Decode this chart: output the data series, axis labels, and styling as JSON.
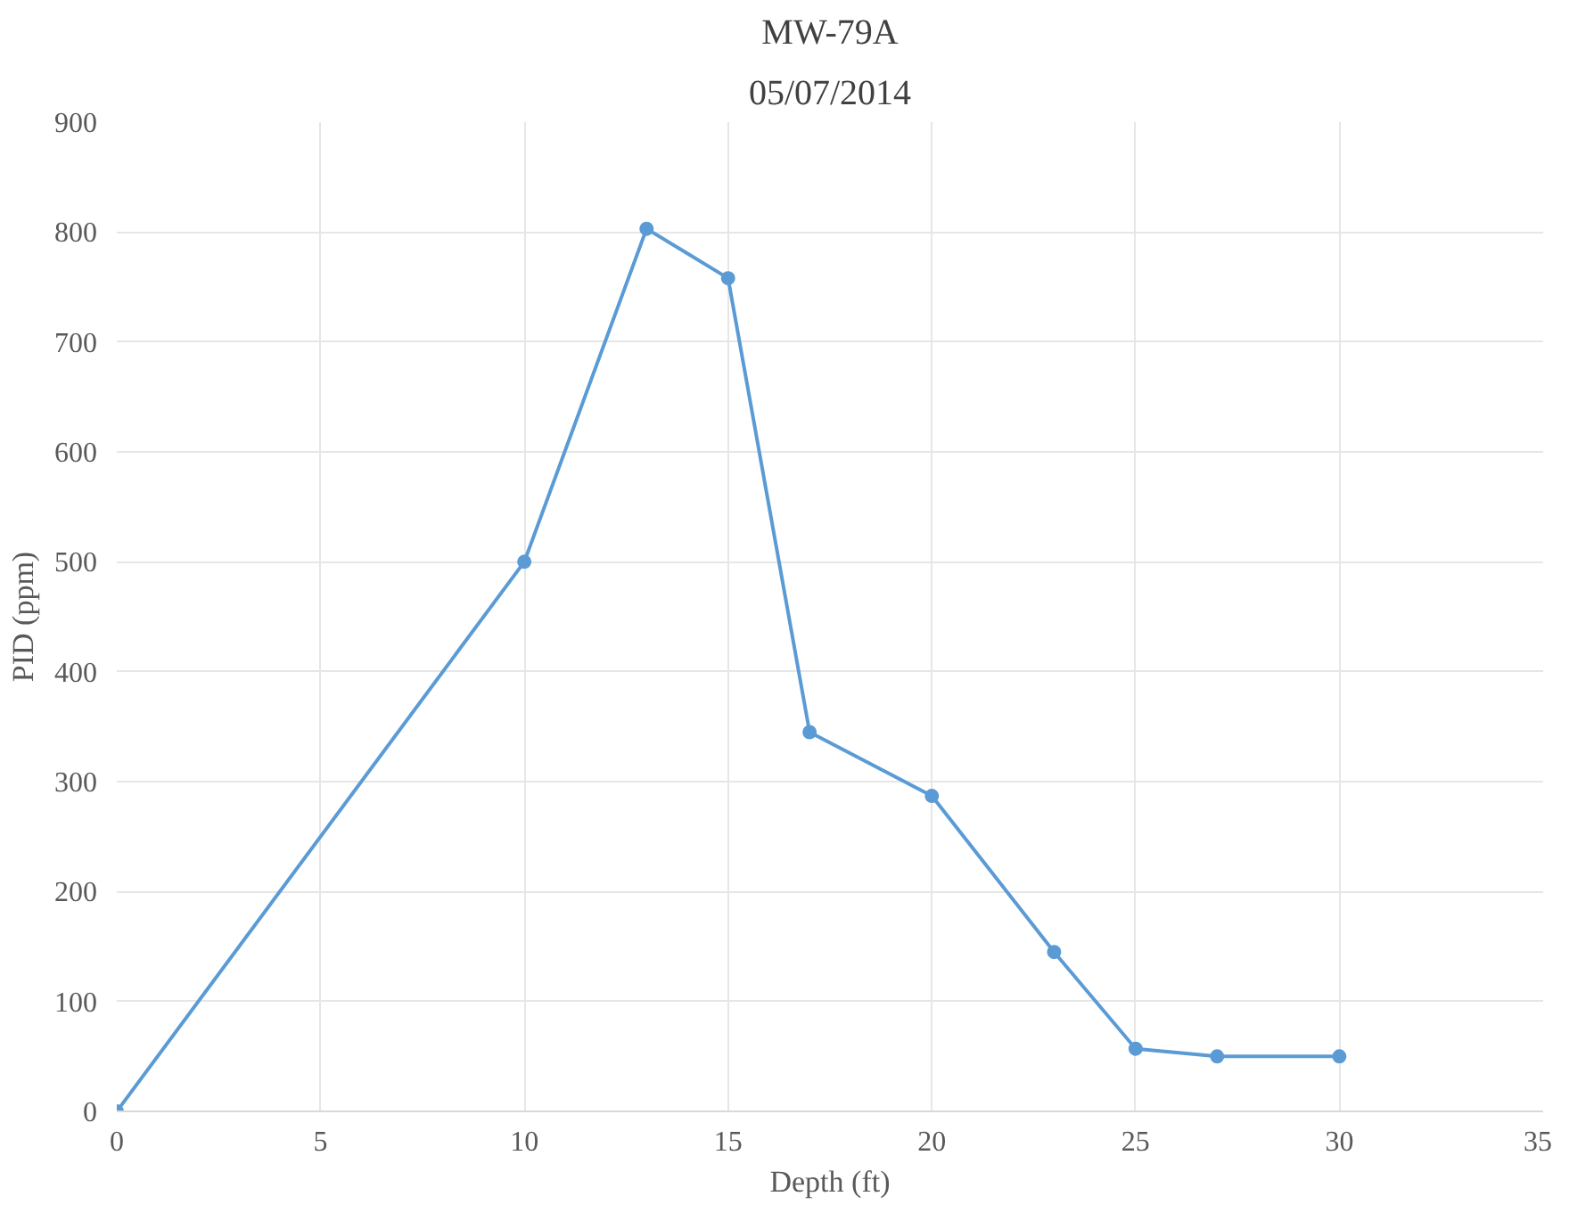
{
  "chart_data": {
    "type": "line",
    "title": "MW-79A",
    "subtitle": "05/07/2014",
    "xlabel": "Depth (ft)",
    "ylabel": "PID (ppm)",
    "x": [
      0,
      10,
      13,
      15,
      17,
      20,
      23,
      25,
      27,
      30
    ],
    "series": [
      {
        "color": "#5b9bd5",
        "values": [
          0,
          500,
          803,
          758,
          345,
          287,
          145,
          57,
          50,
          50
        ]
      }
    ],
    "xlim": [
      0,
      35
    ],
    "xticks": [
      0,
      5,
      10,
      15,
      20,
      25,
      30,
      35
    ],
    "ylim": [
      0,
      900
    ],
    "yticks": [
      0,
      100,
      200,
      300,
      400,
      500,
      600,
      700,
      800,
      900
    ],
    "grid": true,
    "marker": "circle",
    "line_style": "solid"
  }
}
